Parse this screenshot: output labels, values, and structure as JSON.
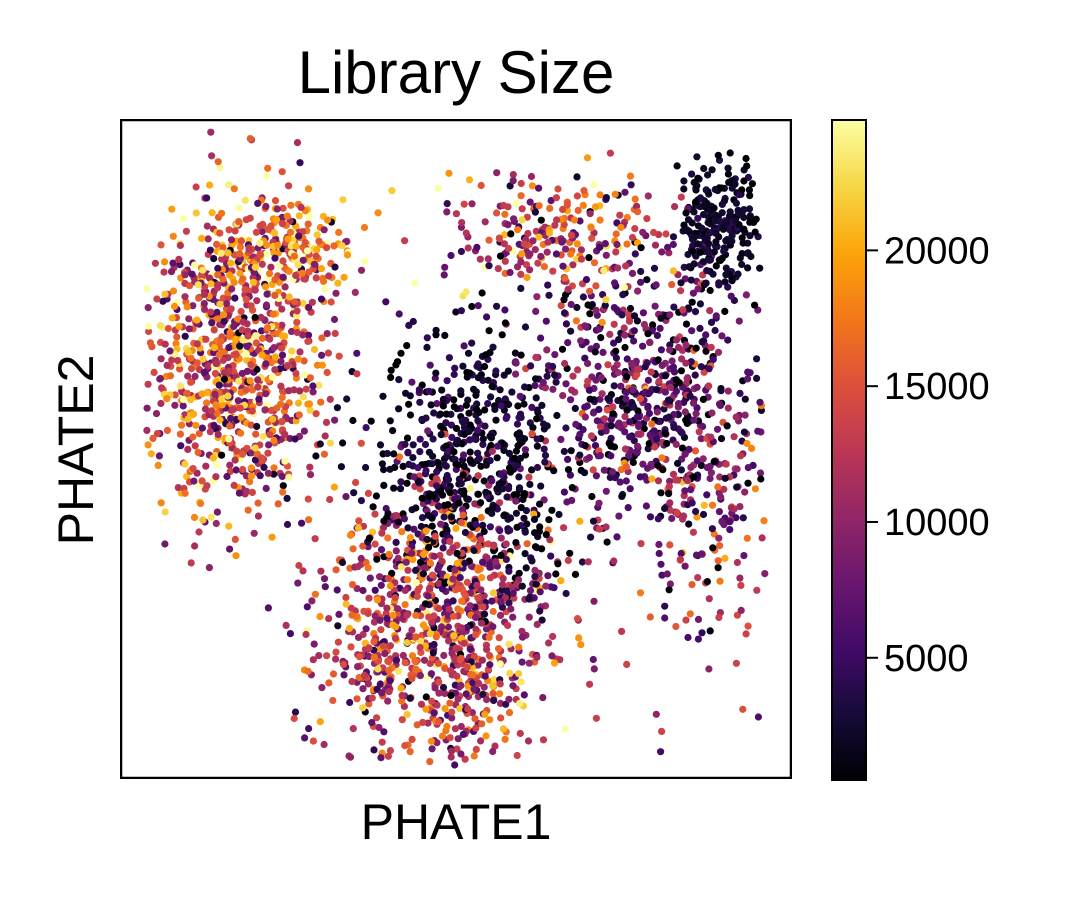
{
  "chart_data": {
    "type": "scatter",
    "title": "Library Size",
    "xlabel": "PHATE1",
    "ylabel": "PHATE2",
    "grid": false,
    "xticks": false,
    "yticks": false,
    "colormap": "inferno",
    "colorbar": {
      "min": 500,
      "max": 24800,
      "ticks": [
        5000,
        10000,
        15000,
        20000
      ],
      "tick_labels": [
        "5000",
        "10000",
        "15000",
        "20000"
      ]
    },
    "xlim": [
      0,
      100
    ],
    "ylim": [
      0,
      100
    ],
    "point_count": 4000,
    "regions": [
      {
        "name": "left-arm",
        "x": 17,
        "y": 63,
        "sx": 7,
        "sy": 12,
        "w": 0.22,
        "c_mu": 14500,
        "c_sd": 5500
      },
      {
        "name": "left-top-spray",
        "x": 24,
        "y": 80,
        "sx": 6,
        "sy": 4,
        "w": 0.06,
        "c_mu": 16000,
        "c_sd": 6000
      },
      {
        "name": "bottom-lobe",
        "x": 47,
        "y": 22,
        "sx": 9,
        "sy": 11,
        "w": 0.24,
        "c_mu": 13000,
        "c_sd": 5000
      },
      {
        "name": "center-core",
        "x": 52,
        "y": 48,
        "sx": 7,
        "sy": 10,
        "w": 0.15,
        "c_mu": 2500,
        "c_sd": 2000
      },
      {
        "name": "right-wing",
        "x": 78,
        "y": 58,
        "sx": 8,
        "sy": 10,
        "w": 0.17,
        "c_mu": 6500,
        "c_sd": 4500
      },
      {
        "name": "upper-right-tip",
        "x": 89,
        "y": 84,
        "sx": 3,
        "sy": 5,
        "w": 0.06,
        "c_mu": 2000,
        "c_sd": 1200
      },
      {
        "name": "upper-mid-spray",
        "x": 64,
        "y": 82,
        "sx": 8,
        "sy": 5,
        "w": 0.06,
        "c_mu": 13000,
        "c_sd": 6000
      },
      {
        "name": "right-tail",
        "x": 88,
        "y": 36,
        "sx": 6,
        "sy": 10,
        "w": 0.04,
        "c_mu": 10000,
        "c_sd": 5000
      }
    ],
    "colorscale_stops": [
      {
        "t": 0.0,
        "color": "#000004"
      },
      {
        "t": 0.1,
        "color": "#160b39"
      },
      {
        "t": 0.2,
        "color": "#420a68"
      },
      {
        "t": 0.3,
        "color": "#6a176e"
      },
      {
        "t": 0.4,
        "color": "#932667"
      },
      {
        "t": 0.5,
        "color": "#bc3754"
      },
      {
        "t": 0.6,
        "color": "#dd513a"
      },
      {
        "t": 0.7,
        "color": "#f37819"
      },
      {
        "t": 0.8,
        "color": "#fca50a"
      },
      {
        "t": 0.9,
        "color": "#f6d746"
      },
      {
        "t": 1.0,
        "color": "#fcffa4"
      }
    ]
  }
}
